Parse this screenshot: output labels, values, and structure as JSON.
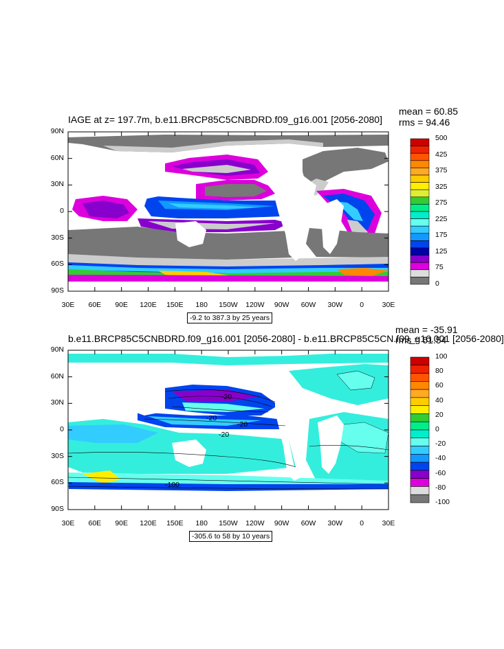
{
  "panels": [
    {
      "id": "iage",
      "title": "IAGE at z= 197.7m, b.e11.BRCP85C5CNBDRD.f09_g16.001 [2056-2080]",
      "stats": [
        "mean = 60.85",
        "rms = 94.46"
      ],
      "contour_info": "-9.2 to 387.3 by 25 years",
      "colorbar": {
        "labels": [
          "500",
          "425",
          "375",
          "325",
          "275",
          "225",
          "175",
          "125",
          "75",
          "0"
        ],
        "colors": [
          "#cc0000",
          "#ee2200",
          "#ff5500",
          "#ff8800",
          "#ffaa22",
          "#ffcc00",
          "#ffee00",
          "#ddee33",
          "#33cc33",
          "#00ee88",
          "#00eecc",
          "#66ffee",
          "#33ccff",
          "#1199ff",
          "#0044ee",
          "#0000aa",
          "#8800cc",
          "#dd00dd",
          "#dddddd",
          "#777777"
        ]
      },
      "color_scheme": {
        "land": "#ffffff",
        "fill": "#777777"
      }
    },
    {
      "id": "diff",
      "title": "b.e11.BRCP85C5CNBDRD.f09_g16.001 [2056-2080] - b.e11.BRCP85C5CN.f09_g16.001 [2056-2080]",
      "stats": [
        "mean = -35.91",
        "rms = 61.54"
      ],
      "contour_info": "-305.6 to 58 by 10 years",
      "colorbar": {
        "labels": [
          "100",
          "80",
          "60",
          "40",
          "20",
          "0",
          "-20",
          "-40",
          "-60",
          "-80",
          "-100"
        ],
        "colors": [
          "#cc0000",
          "#ee2200",
          "#ff5500",
          "#ff8800",
          "#ffaa22",
          "#ffcc00",
          "#ffee00",
          "#33cc33",
          "#00ee88",
          "#00eecc",
          "#66ffee",
          "#33ccff",
          "#1199ff",
          "#0044ee",
          "#8800cc",
          "#dd00dd",
          "#dddddd",
          "#777777"
        ]
      },
      "color_scheme": {
        "land": "#ffffff",
        "fill": "#33eedd"
      }
    }
  ],
  "axes": {
    "x_ticks": [
      "30E",
      "60E",
      "90E",
      "120E",
      "150E",
      "180",
      "150W",
      "120W",
      "90W",
      "60W",
      "30W",
      "0",
      "30E"
    ],
    "y_ticks": [
      "90N",
      "60N",
      "30N",
      "0",
      "30S",
      "60S",
      "90S"
    ]
  },
  "contour_labels": [
    "-20",
    "-20",
    "-20",
    "-20",
    "-100"
  ]
}
